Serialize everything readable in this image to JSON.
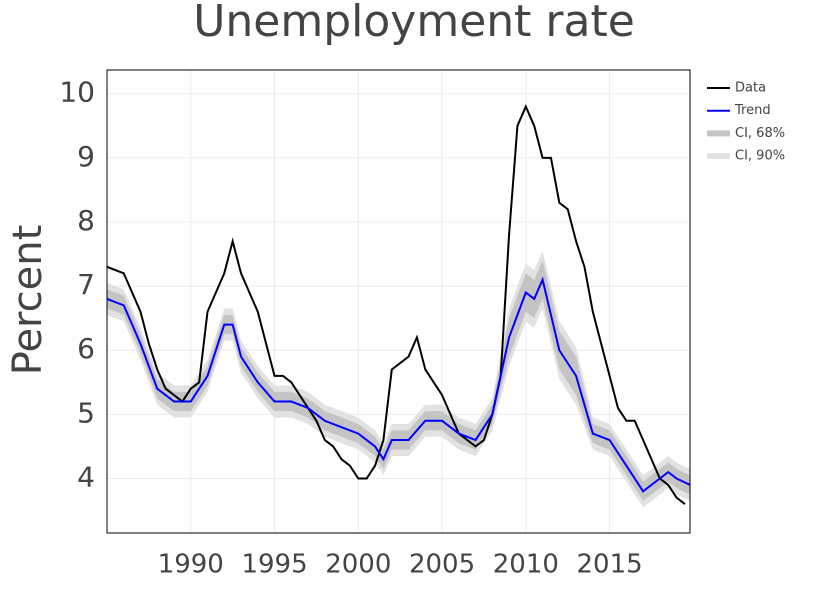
{
  "chart_data": {
    "type": "line",
    "title": "Unemployment rate",
    "y_label": "Percent",
    "xlim": [
      1985,
      2019.8
    ],
    "ylim": [
      3.15,
      10.37
    ],
    "xticks": [
      1990,
      1995,
      2000,
      2005,
      2010,
      2015
    ],
    "yticks": [
      4,
      5,
      6,
      7,
      8,
      9,
      10
    ],
    "grid": true,
    "legend": "right",
    "series": [
      {
        "name": "Data",
        "color": "#000000",
        "x": [
          1985,
          1986,
          1987,
          1987.5,
          1988,
          1988.5,
          1989,
          1989.5,
          1990,
          1990.5,
          1991,
          1991.5,
          1992,
          1992.5,
          1993,
          1993.5,
          1994,
          1994.5,
          1995,
          1995.5,
          1996,
          1996.5,
          1997,
          1997.5,
          1998,
          1998.5,
          1999,
          1999.5,
          2000,
          2000.5,
          2001,
          2001.5,
          2002,
          2002.5,
          2003,
          2003.5,
          2004,
          2004.5,
          2005,
          2005.5,
          2006,
          2006.5,
          2007,
          2007.5,
          2008,
          2008.5,
          2009,
          2009.5,
          2010,
          2010.5,
          2011,
          2011.5,
          2012,
          2012.5,
          2013,
          2013.5,
          2014,
          2014.5,
          2015,
          2015.5,
          2016,
          2016.5,
          2017,
          2017.5,
          2018,
          2018.5,
          2019,
          2019.5
        ],
        "values": [
          7.3,
          7.2,
          6.6,
          6.1,
          5.7,
          5.4,
          5.3,
          5.2,
          5.4,
          5.5,
          6.6,
          6.9,
          7.2,
          7.7,
          7.2,
          6.9,
          6.6,
          6.1,
          5.6,
          5.6,
          5.5,
          5.3,
          5.1,
          4.9,
          4.6,
          4.5,
          4.3,
          4.2,
          4.0,
          4.0,
          4.2,
          4.6,
          5.7,
          5.8,
          5.9,
          6.2,
          5.7,
          5.5,
          5.3,
          5.0,
          4.7,
          4.6,
          4.5,
          4.6,
          5.0,
          5.6,
          7.8,
          9.5,
          9.8,
          9.5,
          9.0,
          9.0,
          8.3,
          8.2,
          7.7,
          7.3,
          6.6,
          6.1,
          5.6,
          5.1,
          4.9,
          4.9,
          4.6,
          4.3,
          4.0,
          3.9,
          3.7,
          3.6
        ]
      },
      {
        "name": "Trend",
        "color": "#0000ff",
        "x": [
          1985,
          1986,
          1987,
          1988,
          1989,
          1990,
          1991,
          1992,
          1992.5,
          1993,
          1994,
          1995,
          1996,
          1997,
          1998,
          1999,
          2000,
          2001,
          2001.5,
          2002,
          2003,
          2004,
          2005,
          2006,
          2007,
          2008,
          2009,
          2010,
          2010.5,
          2011,
          2012,
          2013,
          2014,
          2015,
          2016,
          2017,
          2018,
          2018.5,
          2019,
          2019.8
        ],
        "values": [
          6.8,
          6.7,
          6.1,
          5.4,
          5.2,
          5.2,
          5.6,
          6.4,
          6.4,
          5.9,
          5.5,
          5.2,
          5.2,
          5.1,
          4.9,
          4.8,
          4.7,
          4.5,
          4.3,
          4.6,
          4.6,
          4.9,
          4.9,
          4.7,
          4.6,
          5.0,
          6.2,
          6.9,
          6.8,
          7.1,
          6.0,
          5.6,
          4.7,
          4.6,
          4.2,
          3.8,
          4.0,
          4.1,
          4.0,
          3.9
        ]
      },
      {
        "name": "CI, 68%",
        "color": "#c4c4c4",
        "x": [
          1985,
          1986,
          1987,
          1988,
          1989,
          1990,
          1991,
          1992,
          1992.5,
          1993,
          1994,
          1995,
          1996,
          1997,
          1998,
          1999,
          2000,
          2001,
          2001.5,
          2002,
          2003,
          2004,
          2005,
          2006,
          2007,
          2008,
          2009,
          2010,
          2010.5,
          2011,
          2012,
          2013,
          2014,
          2015,
          2016,
          2017,
          2018,
          2018.5,
          2019,
          2019.8
        ],
        "lower": [
          6.65,
          6.55,
          5.95,
          5.25,
          5.05,
          5.05,
          5.45,
          6.25,
          6.25,
          5.75,
          5.35,
          5.05,
          5.05,
          4.95,
          4.75,
          4.65,
          4.55,
          4.35,
          4.15,
          4.45,
          4.45,
          4.75,
          4.75,
          4.55,
          4.45,
          4.85,
          5.9,
          6.6,
          6.5,
          6.8,
          5.7,
          5.3,
          4.55,
          4.45,
          4.05,
          3.65,
          3.85,
          3.95,
          3.85,
          3.75
        ],
        "upper": [
          6.95,
          6.85,
          6.25,
          5.55,
          5.35,
          5.35,
          5.75,
          6.55,
          6.55,
          6.05,
          5.65,
          5.35,
          5.35,
          5.25,
          5.05,
          4.95,
          4.85,
          4.65,
          4.45,
          4.75,
          4.75,
          5.05,
          5.05,
          4.85,
          4.75,
          5.15,
          6.5,
          7.2,
          7.1,
          7.4,
          6.3,
          5.9,
          4.85,
          4.75,
          4.35,
          3.95,
          4.15,
          4.25,
          4.15,
          4.05
        ]
      },
      {
        "name": "CI, 90%",
        "color": "#e2e2e2",
        "x": [
          1985,
          1986,
          1987,
          1988,
          1989,
          1990,
          1991,
          1992,
          1992.5,
          1993,
          1994,
          1995,
          1996,
          1997,
          1998,
          1999,
          2000,
          2001,
          2001.5,
          2002,
          2003,
          2004,
          2005,
          2006,
          2007,
          2008,
          2009,
          2010,
          2010.5,
          2011,
          2012,
          2013,
          2014,
          2015,
          2016,
          2017,
          2018,
          2018.5,
          2019,
          2019.8
        ],
        "lower": [
          6.55,
          6.45,
          5.85,
          5.15,
          4.95,
          4.95,
          5.35,
          6.15,
          6.15,
          5.65,
          5.25,
          4.95,
          4.95,
          4.85,
          4.65,
          4.55,
          4.45,
          4.25,
          4.05,
          4.35,
          4.35,
          4.65,
          4.65,
          4.45,
          4.35,
          4.75,
          5.75,
          6.45,
          6.35,
          6.65,
          5.55,
          5.15,
          4.45,
          4.35,
          3.95,
          3.55,
          3.75,
          3.85,
          3.75,
          3.65
        ],
        "upper": [
          7.05,
          6.95,
          6.35,
          5.65,
          5.45,
          5.45,
          5.85,
          6.65,
          6.65,
          6.15,
          5.75,
          5.45,
          5.45,
          5.35,
          5.15,
          5.05,
          4.95,
          4.75,
          4.55,
          4.85,
          4.85,
          5.15,
          5.15,
          4.95,
          4.85,
          5.25,
          6.65,
          7.35,
          7.25,
          7.55,
          6.45,
          6.05,
          4.95,
          4.85,
          4.45,
          4.05,
          4.25,
          4.35,
          4.25,
          4.15
        ]
      }
    ]
  }
}
